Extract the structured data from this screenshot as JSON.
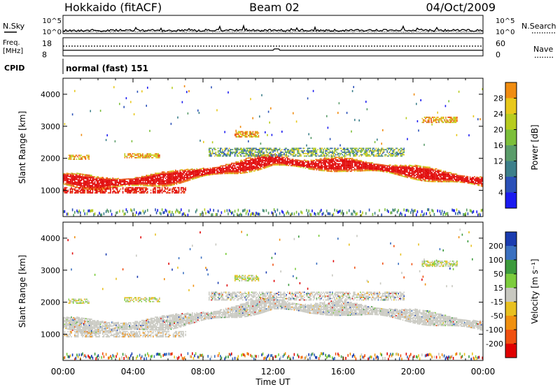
{
  "header": {
    "title_left": "Hokkaido (fitACF)",
    "title_center": "Beam 02",
    "title_right": "04/Oct/2009"
  },
  "strips": {
    "nsky_label": "N.Sky",
    "nsearch_label": "N.Search",
    "nsky_ticks": [
      "10^5",
      "10^0"
    ],
    "nsky_right_ticks": [
      "10^5",
      "10^0"
    ],
    "freq_label_line1": "Freq.",
    "freq_label_line2": "[MHz]",
    "freq_ticks": [
      "18",
      "8"
    ],
    "nave_label": "Nave",
    "nave_ticks": [
      "60",
      "0"
    ],
    "cpid_label": "CPID",
    "cpid_text": "normal (fast) 151"
  },
  "chart_data": [
    {
      "type": "heatmap",
      "name": "power-panel",
      "xlabel": "Time UT",
      "ylabel": "Slant Range [km]",
      "xlim": [
        0,
        24
      ],
      "ylim": [
        180,
        4500
      ],
      "x_ticks": [
        "00:00",
        "04:00",
        "08:00",
        "12:00",
        "16:00",
        "20:00",
        "00:00"
      ],
      "y_ticks": [
        1000,
        2000,
        3000,
        4000
      ],
      "colorbar": {
        "label": "Power [dB]",
        "ticks": [
          4,
          8,
          12,
          16,
          20,
          24,
          28
        ],
        "colors": [
          "#1a1af0",
          "#2a50b8",
          "#3c7f8a",
          "#5a9c6a",
          "#7cbf3a",
          "#b7cc1e",
          "#e8c81a",
          "#f08c10",
          "#e84a10",
          "#e00000"
        ]
      },
      "main_band": [
        [
          0,
          1350
        ],
        [
          2,
          1200
        ],
        [
          4,
          1250
        ],
        [
          6,
          1350
        ],
        [
          8,
          1550
        ],
        [
          10,
          1700
        ],
        [
          12,
          1950
        ],
        [
          14,
          1780
        ],
        [
          16,
          1800
        ],
        [
          18,
          1700
        ],
        [
          20,
          1550
        ],
        [
          22,
          1400
        ],
        [
          24,
          1250
        ]
      ]
    },
    {
      "type": "heatmap",
      "name": "velocity-panel",
      "xlabel": "Time UT",
      "ylabel": "Slant Range [km]",
      "xlim": [
        0,
        24
      ],
      "ylim": [
        180,
        4500
      ],
      "x_ticks": [
        "00:00",
        "04:00",
        "08:00",
        "12:00",
        "16:00",
        "20:00",
        "00:00"
      ],
      "y_ticks": [
        1000,
        2000,
        3000,
        4000
      ],
      "colorbar": {
        "label": "Velocity [m s⁻¹]",
        "ticks": [
          200,
          100,
          50,
          15,
          -15,
          -50,
          -100,
          -200
        ],
        "colors": [
          "#1a3cb0",
          "#3a70c0",
          "#3c9a3c",
          "#7ccc3c",
          "#c8c8c0",
          "#e8c020",
          "#f09010",
          "#f05010",
          "#e00000"
        ]
      }
    }
  ]
}
